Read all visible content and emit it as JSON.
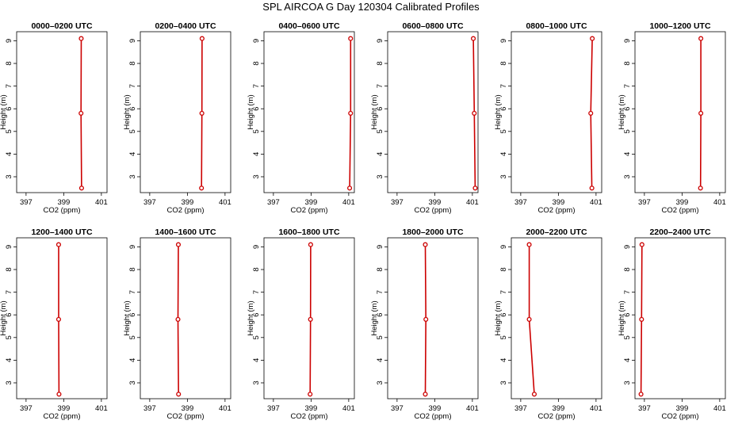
{
  "title": "SPL AIRCOA G  Day 120304  Calibrated Profiles",
  "colors": {
    "profile": "#cc0000",
    "axes": "#000000"
  },
  "chart_data": [
    {
      "type": "line",
      "title": "0000–0200 UTC",
      "xlabel": "CO2 (ppm)",
      "ylabel": "Height (m)",
      "xlim": [
        396.5,
        401.3
      ],
      "ylim": [
        2.3,
        9.4
      ],
      "xticks": [
        397,
        399,
        401
      ],
      "yticks": [
        3,
        4,
        5,
        6,
        7,
        8,
        9
      ],
      "grid": false,
      "series": [
        {
          "x": [
            399.95,
            399.92,
            399.93
          ],
          "y": [
            2.5,
            5.8,
            9.1
          ]
        }
      ]
    },
    {
      "type": "line",
      "title": "0200–0400 UTC",
      "xlabel": "CO2 (ppm)",
      "ylabel": "Height (m)",
      "xlim": [
        396.5,
        401.3
      ],
      "ylim": [
        2.3,
        9.4
      ],
      "xticks": [
        397,
        399,
        401
      ],
      "yticks": [
        3,
        4,
        5,
        6,
        7,
        8,
        9
      ],
      "grid": false,
      "series": [
        {
          "x": [
            399.75,
            399.77,
            399.78
          ],
          "y": [
            2.5,
            5.8,
            9.1
          ]
        }
      ]
    },
    {
      "type": "line",
      "title": "0400–0600 UTC",
      "xlabel": "CO2 (ppm)",
      "ylabel": "Height (m)",
      "xlim": [
        396.5,
        401.3
      ],
      "ylim": [
        2.3,
        9.4
      ],
      "xticks": [
        397,
        399,
        401
      ],
      "yticks": [
        3,
        4,
        5,
        6,
        7,
        8,
        9
      ],
      "grid": false,
      "series": [
        {
          "x": [
            401.05,
            401.1,
            401.1
          ],
          "y": [
            2.5,
            5.8,
            9.1
          ]
        }
      ]
    },
    {
      "type": "line",
      "title": "0600–0800 UTC",
      "xlabel": "CO2 (ppm)",
      "ylabel": "Height (m)",
      "xlim": [
        396.5,
        401.3
      ],
      "ylim": [
        2.3,
        9.4
      ],
      "xticks": [
        397,
        399,
        401
      ],
      "yticks": [
        3,
        4,
        5,
        6,
        7,
        8,
        9
      ],
      "grid": false,
      "series": [
        {
          "x": [
            401.15,
            401.1,
            401.05
          ],
          "y": [
            2.5,
            5.8,
            9.1
          ]
        }
      ]
    },
    {
      "type": "line",
      "title": "0800–1000 UTC",
      "xlabel": "CO2 (ppm)",
      "ylabel": "Height (m)",
      "xlim": [
        396.5,
        401.3
      ],
      "ylim": [
        2.3,
        9.4
      ],
      "xticks": [
        397,
        399,
        401
      ],
      "yticks": [
        3,
        4,
        5,
        6,
        7,
        8,
        9
      ],
      "grid": false,
      "series": [
        {
          "x": [
            400.78,
            400.72,
            400.8
          ],
          "y": [
            2.5,
            5.8,
            9.1
          ]
        }
      ]
    },
    {
      "type": "line",
      "title": "1000–1200 UTC",
      "xlabel": "CO2 (ppm)",
      "ylabel": "Height (m)",
      "xlim": [
        396.5,
        401.3
      ],
      "ylim": [
        2.3,
        9.4
      ],
      "xticks": [
        397,
        399,
        401
      ],
      "yticks": [
        3,
        4,
        5,
        6,
        7,
        8,
        9
      ],
      "grid": false,
      "series": [
        {
          "x": [
            399.98,
            400.0,
            400.0
          ],
          "y": [
            2.5,
            5.8,
            9.1
          ]
        }
      ]
    },
    {
      "type": "line",
      "title": "1200–1400 UTC",
      "xlabel": "CO2 (ppm)",
      "ylabel": "Height (m)",
      "xlim": [
        396.5,
        401.3
      ],
      "ylim": [
        2.3,
        9.4
      ],
      "xticks": [
        397,
        399,
        401
      ],
      "yticks": [
        3,
        4,
        5,
        6,
        7,
        8,
        9
      ],
      "grid": false,
      "series": [
        {
          "x": [
            398.75,
            398.73,
            398.73
          ],
          "y": [
            2.5,
            5.8,
            9.1
          ]
        }
      ]
    },
    {
      "type": "line",
      "title": "1400–1600 UTC",
      "xlabel": "CO2 (ppm)",
      "ylabel": "Height (m)",
      "xlim": [
        396.5,
        401.3
      ],
      "ylim": [
        2.3,
        9.4
      ],
      "xticks": [
        397,
        399,
        401
      ],
      "yticks": [
        3,
        4,
        5,
        6,
        7,
        8,
        9
      ],
      "grid": false,
      "series": [
        {
          "x": [
            398.53,
            398.5,
            398.52
          ],
          "y": [
            2.5,
            5.8,
            9.1
          ]
        }
      ]
    },
    {
      "type": "line",
      "title": "1600–1800 UTC",
      "xlabel": "CO2 (ppm)",
      "ylabel": "Height (m)",
      "xlim": [
        396.5,
        401.3
      ],
      "ylim": [
        2.3,
        9.4
      ],
      "xticks": [
        397,
        399,
        401
      ],
      "yticks": [
        3,
        4,
        5,
        6,
        7,
        8,
        9
      ],
      "grid": false,
      "series": [
        {
          "x": [
            398.95,
            398.97,
            398.98
          ],
          "y": [
            2.5,
            5.8,
            9.1
          ]
        }
      ]
    },
    {
      "type": "line",
      "title": "1800–2000 UTC",
      "xlabel": "CO2 (ppm)",
      "ylabel": "Height (m)",
      "xlim": [
        396.5,
        401.3
      ],
      "ylim": [
        2.3,
        9.4
      ],
      "xticks": [
        397,
        399,
        401
      ],
      "yticks": [
        3,
        4,
        5,
        6,
        7,
        8,
        9
      ],
      "grid": false,
      "series": [
        {
          "x": [
            398.5,
            398.53,
            398.5
          ],
          "y": [
            2.5,
            5.8,
            9.1
          ]
        }
      ]
    },
    {
      "type": "line",
      "title": "2000–2200 UTC",
      "xlabel": "CO2 (ppm)",
      "ylabel": "Height (m)",
      "xlim": [
        396.5,
        401.3
      ],
      "ylim": [
        2.3,
        9.4
      ],
      "xticks": [
        397,
        399,
        401
      ],
      "yticks": [
        3,
        4,
        5,
        6,
        7,
        8,
        9
      ],
      "grid": false,
      "series": [
        {
          "x": [
            397.72,
            397.45,
            397.45
          ],
          "y": [
            2.5,
            5.8,
            9.1
          ]
        }
      ]
    },
    {
      "type": "line",
      "title": "2200–2400 UTC",
      "xlabel": "CO2 (ppm)",
      "ylabel": "Height (m)",
      "xlim": [
        396.5,
        401.3
      ],
      "ylim": [
        2.3,
        9.4
      ],
      "xticks": [
        397,
        399,
        401
      ],
      "yticks": [
        3,
        4,
        5,
        6,
        7,
        8,
        9
      ],
      "grid": false,
      "series": [
        {
          "x": [
            396.82,
            396.85,
            396.87
          ],
          "y": [
            2.5,
            5.8,
            9.1
          ]
        }
      ]
    }
  ]
}
